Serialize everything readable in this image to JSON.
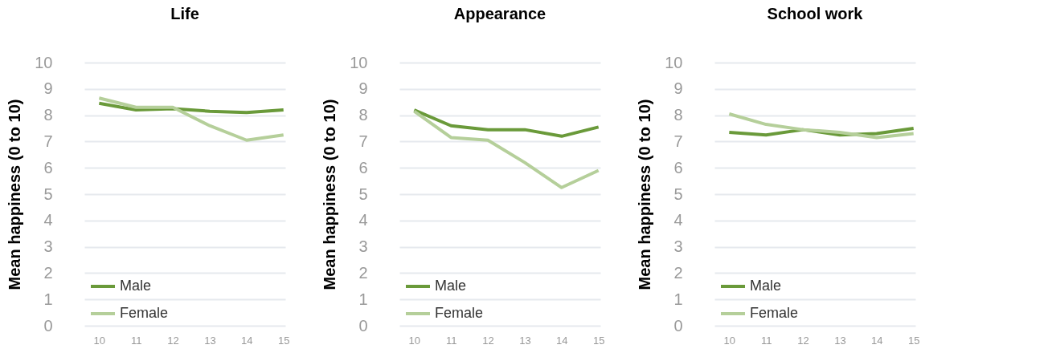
{
  "chart_data": [
    {
      "type": "line",
      "title": "Life",
      "ylabel": "Mean happiness (0 to 10)",
      "categories": [
        "10",
        "11",
        "12",
        "13",
        "14",
        "15"
      ],
      "ylim": [
        0,
        10
      ],
      "yticks": [
        0,
        1,
        2,
        3,
        4,
        5,
        6,
        7,
        8,
        9,
        10
      ],
      "grid": "y",
      "legend": "bottom left",
      "line_style": "solid",
      "series": [
        {
          "name": "Male",
          "color": "#6a9a3a",
          "values": [
            8.45,
            8.2,
            8.25,
            8.15,
            8.1,
            8.2
          ]
        },
        {
          "name": "Female",
          "color": "#b5cf9a",
          "values": [
            8.65,
            8.3,
            8.3,
            7.6,
            7.05,
            7.25
          ]
        }
      ]
    },
    {
      "type": "line",
      "title": "Appearance",
      "ylabel": "Mean happiness (0 to 10)",
      "categories": [
        "10",
        "11",
        "12",
        "13",
        "14",
        "15"
      ],
      "ylim": [
        0,
        10
      ],
      "yticks": [
        0,
        1,
        2,
        3,
        4,
        5,
        6,
        7,
        8,
        9,
        10
      ],
      "grid": "y",
      "legend": "bottom left",
      "line_style": "solid",
      "series": [
        {
          "name": "Male",
          "color": "#6a9a3a",
          "values": [
            8.2,
            7.6,
            7.45,
            7.45,
            7.2,
            7.55
          ]
        },
        {
          "name": "Female",
          "color": "#b5cf9a",
          "values": [
            8.15,
            7.15,
            7.05,
            6.2,
            5.25,
            5.9
          ]
        }
      ]
    },
    {
      "type": "line",
      "title": "School work",
      "ylabel": "Mean happiness (0 to 10)",
      "categories": [
        "10",
        "11",
        "12",
        "13",
        "14",
        "15"
      ],
      "ylim": [
        0,
        10
      ],
      "yticks": [
        0,
        1,
        2,
        3,
        4,
        5,
        6,
        7,
        8,
        9,
        10
      ],
      "grid": "y",
      "legend": "bottom left",
      "line_style": "solid",
      "series": [
        {
          "name": "Male",
          "color": "#6a9a3a",
          "values": [
            7.35,
            7.25,
            7.45,
            7.25,
            7.3,
            7.5
          ]
        },
        {
          "name": "Female",
          "color": "#b5cf9a",
          "values": [
            8.05,
            7.65,
            7.45,
            7.35,
            7.15,
            7.3
          ]
        }
      ]
    }
  ]
}
